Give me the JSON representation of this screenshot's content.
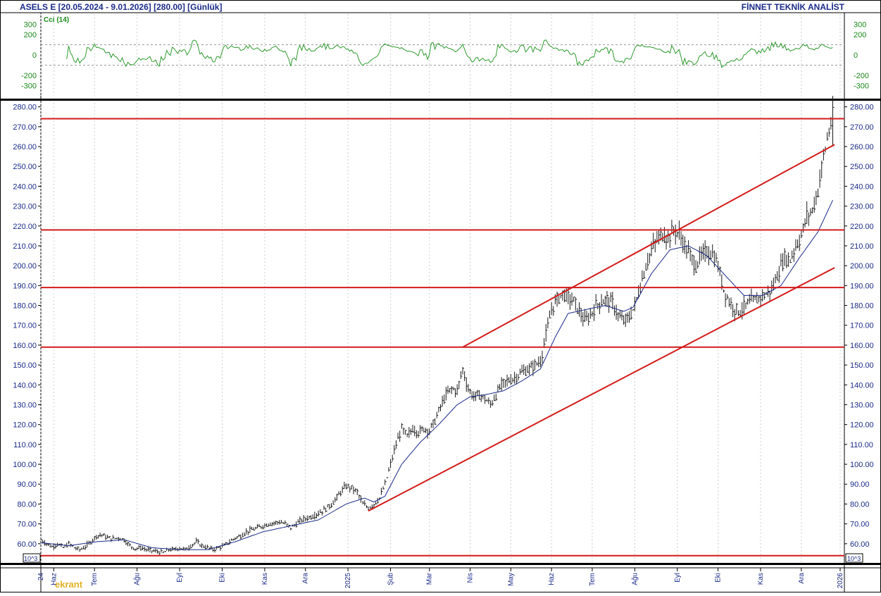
{
  "header": {
    "title": "ASELS E  [20.05.2024 - 9.01.2026]  [280.00]  [Günlük]",
    "provider": "FİNNET TEKNİK ANALİST",
    "watermark": "ekrant"
  },
  "chart_data": [
    {
      "type": "line",
      "indicator": "Cci (14)",
      "ylim": [
        -400,
        400
      ],
      "yticks_left": [
        "300",
        "200",
        "0",
        "-200",
        "-300"
      ],
      "yticks_right": [
        "300",
        "200",
        "0",
        "-200",
        "-300"
      ],
      "reference_levels": [
        100,
        -100
      ],
      "color": "#2e9a2e"
    },
    {
      "type": "candlestick",
      "ylim": [
        50,
        282
      ],
      "yticks": [
        "60.00",
        "70.00",
        "80.00",
        "90.00",
        "100.00",
        "110.00",
        "120.00",
        "130.00",
        "140.00",
        "150.00",
        "160.00",
        "170.00",
        "180.00",
        "190.00",
        "200.00",
        "210.00",
        "220.00",
        "230.00",
        "240.00",
        "250.00",
        "260.00",
        "270.00",
        "280.00"
      ],
      "scale_note": "10^3",
      "x_tick_labels": [
        "24",
        "Haz",
        "Tem",
        "Ağu",
        "Eyl",
        "Eki",
        "Kas",
        "Ara",
        "2025",
        "Şub",
        "Mar",
        "Nis",
        "May",
        "Haz",
        "Tem",
        "Ağu",
        "Eyl",
        "Eki",
        "Kas",
        "Ara",
        "2026"
      ],
      "series": [
        {
          "kind": "price_path",
          "points": [
            [
              0,
              62
            ],
            [
              3,
              60
            ],
            [
              6,
              58.5
            ],
            [
              9,
              60
            ],
            [
              12,
              58
            ],
            [
              15,
              60
            ],
            [
              18,
              58
            ],
            [
              21,
              57
            ],
            [
              24,
              58.5
            ],
            [
              27,
              61
            ],
            [
              30,
              64
            ],
            [
              33,
              64.5
            ],
            [
              36,
              63
            ],
            [
              39,
              62.5
            ],
            [
              42,
              63
            ],
            [
              45,
              62
            ],
            [
              48,
              59
            ],
            [
              51,
              57.5
            ],
            [
              54,
              58
            ],
            [
              57,
              57
            ],
            [
              60,
              56.5
            ],
            [
              63,
              56
            ],
            [
              66,
              55.5
            ],
            [
              69,
              57
            ],
            [
              72,
              57
            ],
            [
              75,
              58
            ],
            [
              78,
              57
            ],
            [
              81,
              59
            ],
            [
              84,
              61
            ],
            [
              87,
              59
            ],
            [
              90,
              58
            ],
            [
              93,
              57
            ],
            [
              96,
              58
            ],
            [
              99,
              59
            ],
            [
              102,
              61
            ],
            [
              105,
              63
            ],
            [
              108,
              64
            ],
            [
              111,
              66
            ],
            [
              114,
              67
            ],
            [
              117,
              68
            ],
            [
              120,
              69
            ],
            [
              123,
              70
            ],
            [
              126,
              70.5
            ],
            [
              129,
              71
            ],
            [
              132,
              70
            ],
            [
              135,
              68
            ],
            [
              138,
              70
            ],
            [
              141,
              72
            ],
            [
              144,
              73
            ],
            [
              147,
              74
            ],
            [
              150,
              75.5
            ],
            [
              153,
              77
            ],
            [
              156,
              79
            ],
            [
              159,
              82
            ],
            [
              162,
              86
            ],
            [
              165,
              89
            ],
            [
              168,
              88
            ],
            [
              171,
              86
            ],
            [
              174,
              80
            ],
            [
              177,
              78
            ],
            [
              180,
              80
            ],
            [
              183,
              83
            ],
            [
              186,
              90
            ],
            [
              189,
              100
            ],
            [
              192,
              110
            ],
            [
              195,
              118
            ],
            [
              198,
              114
            ],
            [
              201,
              118
            ],
            [
              204,
              116
            ],
            [
              207,
              118
            ],
            [
              210,
              117
            ],
            [
              213,
              122
            ],
            [
              216,
              129
            ],
            [
              219,
              135
            ],
            [
              222,
              138
            ],
            [
              225,
              137
            ],
            [
              228,
              148
            ],
            [
              231,
              138
            ],
            [
              234,
              134
            ],
            [
              237,
              135
            ],
            [
              240,
              133
            ],
            [
              243,
              130
            ],
            [
              246,
              135
            ],
            [
              249,
              140
            ],
            [
              252,
              142
            ],
            [
              255,
              143
            ],
            [
              258,
              145
            ],
            [
              261,
              147
            ],
            [
              264,
              148
            ],
            [
              267,
              150
            ],
            [
              270,
              152
            ],
            [
              273,
              165
            ],
            [
              276,
              178
            ],
            [
              279,
              183
            ],
            [
              282,
              186
            ],
            [
              285,
              184
            ],
            [
              288,
              182
            ],
            [
              291,
              177
            ],
            [
              294,
              172
            ],
            [
              297,
              175
            ],
            [
              300,
              180
            ],
            [
              303,
              182
            ],
            [
              306,
              183
            ],
            [
              309,
              181
            ],
            [
              312,
              175
            ],
            [
              315,
              172
            ],
            [
              318,
              174
            ],
            [
              321,
              180
            ],
            [
              324,
              190
            ],
            [
              327,
              200
            ],
            [
              330,
              208
            ],
            [
              333,
              213
            ],
            [
              336,
              216
            ],
            [
              339,
              214
            ],
            [
              342,
              218
            ],
            [
              345,
              216
            ],
            [
              348,
              210
            ],
            [
              351,
              205
            ],
            [
              354,
              200
            ],
            [
              357,
              205
            ],
            [
              360,
              207
            ],
            [
              363,
              206
            ],
            [
              366,
              200
            ],
            [
              369,
              188
            ],
            [
              372,
              182
            ],
            [
              375,
              178
            ],
            [
              378,
              177
            ],
            [
              381,
              180
            ],
            [
              384,
              182
            ],
            [
              387,
              183
            ],
            [
              390,
              185
            ],
            [
              393,
              186
            ],
            [
              396,
              190
            ],
            [
              399,
              198
            ],
            [
              402,
              204
            ],
            [
              405,
              203
            ],
            [
              408,
              210
            ],
            [
              411,
              215
            ],
            [
              414,
              225
            ],
            [
              417,
              228
            ],
            [
              420,
              238
            ],
            [
              423,
              255
            ],
            [
              426,
              268
            ],
            [
              428,
              275
            ]
          ],
          "color": "#1a1a1a"
        },
        {
          "kind": "moving_average",
          "points": [
            [
              0,
              60.5
            ],
            [
              15,
              59
            ],
            [
              30,
              61
            ],
            [
              45,
              62
            ],
            [
              60,
              58
            ],
            [
              75,
              57
            ],
            [
              90,
              57
            ],
            [
              105,
              61
            ],
            [
              120,
              66
            ],
            [
              135,
              69
            ],
            [
              150,
              72
            ],
            [
              165,
              80
            ],
            [
              175,
              83
            ],
            [
              180,
              81
            ],
            [
              186,
              84
            ],
            [
              195,
              100
            ],
            [
              205,
              111
            ],
            [
              215,
              120
            ],
            [
              225,
              130
            ],
            [
              232,
              134
            ],
            [
              240,
              135
            ],
            [
              250,
              137
            ],
            [
              260,
              142
            ],
            [
              270,
              148
            ],
            [
              278,
              164
            ],
            [
              285,
              176
            ],
            [
              295,
              178
            ],
            [
              305,
              180
            ],
            [
              315,
              177
            ],
            [
              320,
              179
            ],
            [
              330,
              196
            ],
            [
              340,
              208
            ],
            [
              350,
              210
            ],
            [
              360,
              205
            ],
            [
              370,
              195
            ],
            [
              380,
              185
            ],
            [
              390,
              185
            ],
            [
              400,
              190
            ],
            [
              410,
              204
            ],
            [
              420,
              217
            ],
            [
              428,
              233
            ]
          ],
          "color": "#1a2a8a"
        }
      ],
      "horizontal_lines": [
        54,
        159,
        189,
        218,
        274
      ],
      "trend_lines": [
        {
          "from": [
            177,
            76.5
          ],
          "to": [
            429,
            199
          ]
        },
        {
          "from": [
            228,
            159
          ],
          "to": [
            429,
            261
          ]
        }
      ],
      "line_color": "#d41a1a"
    }
  ]
}
